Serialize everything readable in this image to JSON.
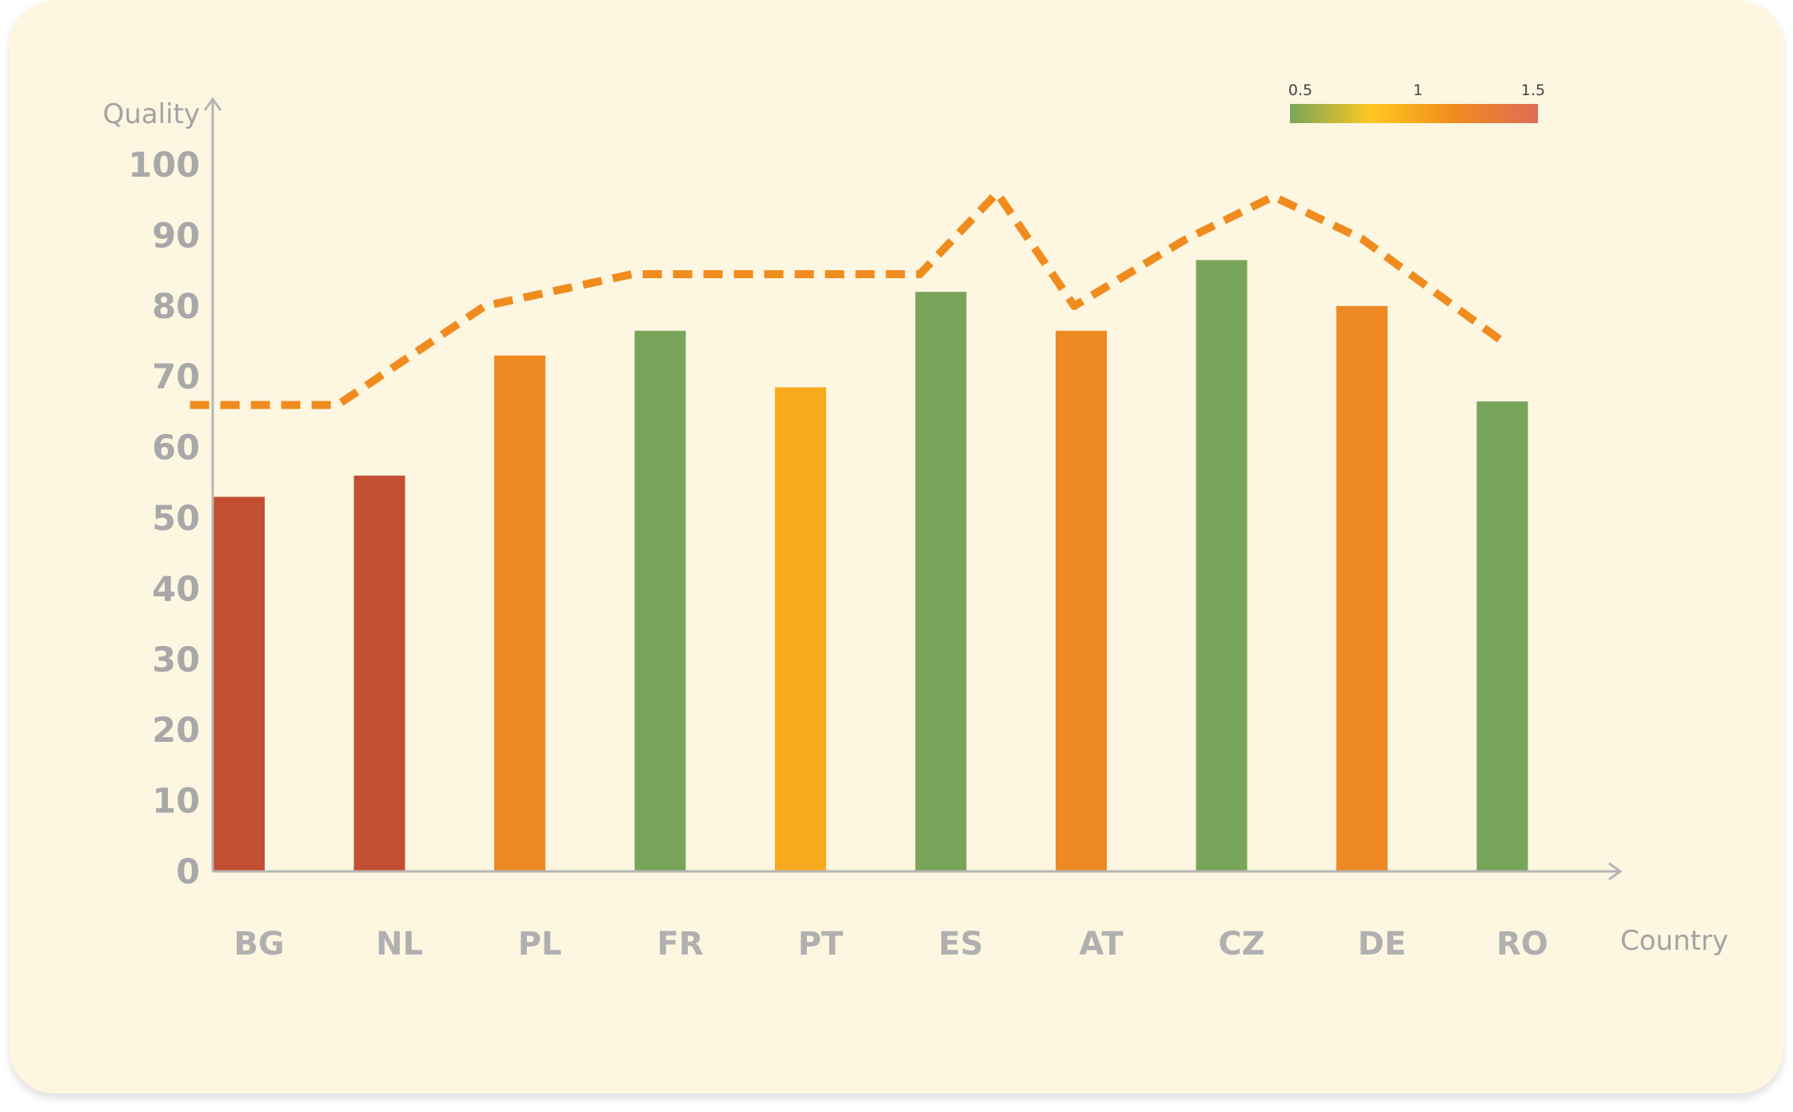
{
  "chart_data": {
    "type": "bar",
    "title": "",
    "xlabel": "Country",
    "ylabel": "Quality",
    "ylim": [
      0,
      100
    ],
    "yticks": [
      0,
      10,
      20,
      30,
      40,
      50,
      60,
      70,
      80,
      90,
      100
    ],
    "categories": [
      "BG",
      "NL",
      "PL",
      "FR",
      "PT",
      "ES",
      "AT",
      "CZ",
      "DE",
      "RO"
    ],
    "series": [
      {
        "type": "bar",
        "values": [
          53,
          56,
          73,
          76.5,
          68.5,
          82,
          76.5,
          86.5,
          80,
          66.5
        ],
        "color_values": [
          1.5,
          1.5,
          1.2,
          0.5,
          1.0,
          0.5,
          1.2,
          0.5,
          1.2,
          0.5
        ]
      },
      {
        "type": "line",
        "style": "dashed",
        "color": "#f08c1e",
        "x": [
          -0.35,
          0.7,
          1.75,
          2.8,
          4.85,
          5.4,
          5.95,
          6.75,
          7.37,
          8.0,
          9.0
        ],
        "values": [
          66,
          66,
          80,
          84.5,
          84.5,
          96,
          80,
          89.5,
          95.5,
          89.5,
          75
        ]
      }
    ],
    "colorbar": {
      "ticks": [
        "0.5",
        "1",
        "1.5"
      ],
      "range": [
        0.5,
        1.5
      ],
      "colors": [
        "#79a55a",
        "#ffc820",
        "#f08c1e",
        "#e26a55"
      ],
      "placement": "top-right"
    },
    "grid": false
  }
}
